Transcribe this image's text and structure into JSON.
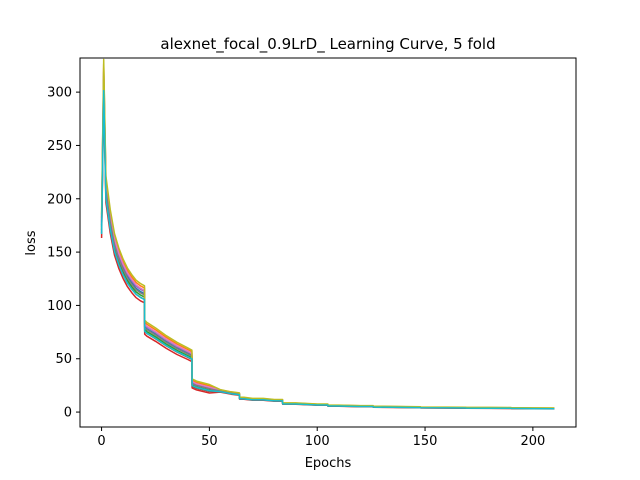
{
  "chart_data": {
    "type": "line",
    "title": "alexnet_focal_0.9LrD_ Learning Curve, 5 fold",
    "xlabel": "Epochs",
    "ylabel": "loss",
    "xlim": [
      -10,
      220
    ],
    "ylim": [
      -14,
      332
    ],
    "xticks": [
      0,
      50,
      100,
      150,
      200
    ],
    "yticks": [
      0,
      50,
      100,
      150,
      200,
      250,
      300
    ],
    "grid": false,
    "legend": "none",
    "series_colors": [
      "#1f77b4",
      "#ff7f0e",
      "#2ca02c",
      "#d62728",
      "#9467bd",
      "#8c564b",
      "#e377c2",
      "#7f7f7f",
      "#bcbd22",
      "#17becf"
    ],
    "series_profile": {
      "x": [
        0,
        1,
        2,
        4,
        6,
        8,
        10,
        12,
        14,
        16,
        18,
        19.9,
        20,
        21,
        25,
        30,
        35,
        40,
        41.9,
        42,
        44,
        50,
        55,
        60,
        63.9,
        64,
        66,
        70,
        75,
        80,
        83.9,
        84,
        90,
        100,
        104.9,
        105,
        110,
        120,
        125.9,
        126,
        135,
        147.9,
        148,
        160,
        168.9,
        169,
        180,
        189.9,
        190,
        200,
        210
      ],
      "y": [
        175,
        315,
        210,
        180,
        158,
        145,
        135,
        127,
        121,
        116,
        113,
        111,
        80,
        78,
        73,
        66,
        60,
        55,
        53,
        27,
        25,
        22,
        20,
        18,
        17,
        13,
        13,
        12,
        12,
        11,
        11,
        8,
        8,
        7,
        7,
        6,
        6,
        5.5,
        5.5,
        5,
        4.8,
        4.5,
        4.3,
        4.2,
        4.1,
        4.0,
        3.9,
        3.8,
        3.7,
        3.5,
        3.4
      ]
    },
    "series_offsets": [
      {
        "scale": 1.0,
        "bias": 0
      },
      {
        "scale": 1.03,
        "bias": 2
      },
      {
        "scale": 0.98,
        "bias": -1
      },
      {
        "scale": 0.95,
        "bias": -3
      },
      {
        "scale": 1.01,
        "bias": 1
      },
      {
        "scale": 0.97,
        "bias": -2
      },
      {
        "scale": 1.02,
        "bias": 1
      },
      {
        "scale": 0.99,
        "bias": 0
      },
      {
        "scale": 1.04,
        "bias": 3
      },
      {
        "scale": 0.96,
        "bias": -1
      }
    ]
  }
}
